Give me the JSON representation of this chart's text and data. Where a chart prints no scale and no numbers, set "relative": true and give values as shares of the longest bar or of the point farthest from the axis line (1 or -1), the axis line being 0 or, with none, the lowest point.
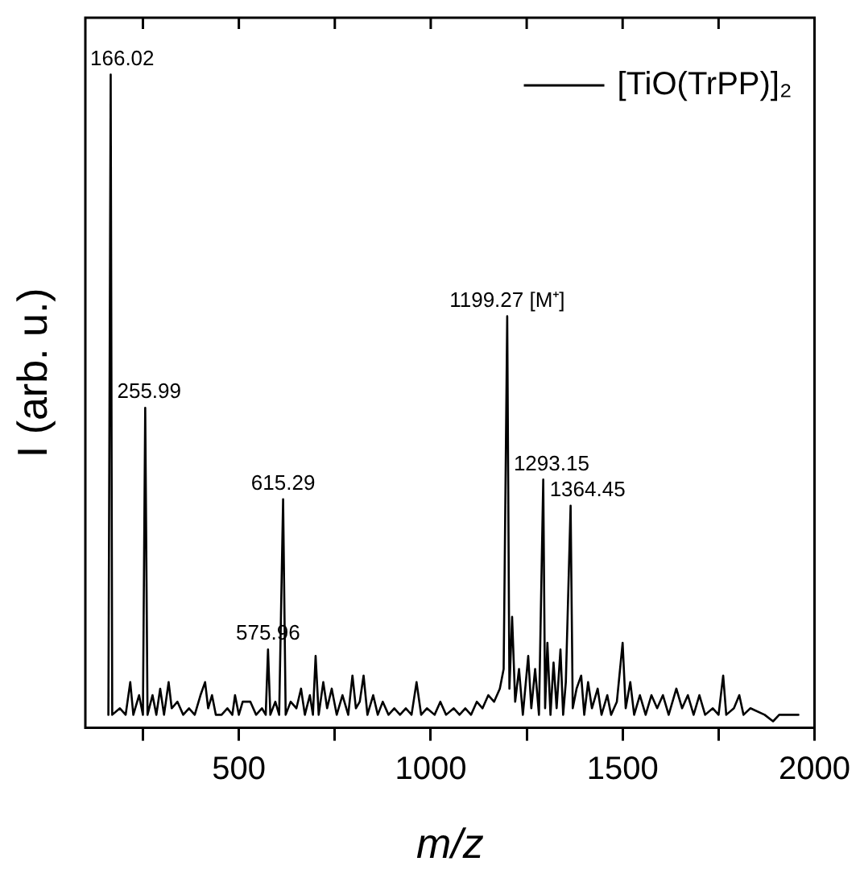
{
  "chart_data": {
    "type": "line",
    "relative": true,
    "xlabel": "m/z",
    "ylabel": "I (arb. u.)",
    "xlim": [
      100,
      2000
    ],
    "xticks": [
      {
        "value": 250,
        "label": null
      },
      500,
      {
        "value": 750,
        "label": null
      },
      1000,
      {
        "value": 1250,
        "label": null
      },
      1500,
      {
        "value": 1750,
        "label": null
      },
      2000
    ],
    "legend": "top right",
    "grid": false,
    "marker": "none",
    "line_style": "solid",
    "annotations": [
      {
        "text": "166.02",
        "x": 166.02,
        "y": 1.0
      },
      {
        "text": "255.99",
        "x": 255.99,
        "y": 0.49
      },
      {
        "text": "575.96",
        "x": 575.96,
        "y": 0.12
      },
      {
        "text": "615.29",
        "x": 615.29,
        "y": 0.35
      },
      {
        "text": "1199.27 [M⁺]",
        "x": 1199.27,
        "y": 0.63
      },
      {
        "text": "1293.15",
        "x": 1293.15,
        "y": 0.38
      },
      {
        "text": "1364.45",
        "x": 1364.45,
        "y": 0.34
      }
    ],
    "series": [
      {
        "name": "[TiO(TrPP)]₂",
        "color": "#000000",
        "x": [
          160,
          166.02,
          170,
          190,
          205,
          217,
          225,
          240,
          250,
          255.99,
          262,
          275,
          285,
          295,
          305,
          317,
          325,
          340,
          355,
          370,
          385,
          400,
          412,
          420,
          430,
          440,
          455,
          470,
          483,
          490,
          500,
          510,
          530,
          545,
          560,
          570,
          575.96,
          582,
          595,
          605,
          615.29,
          622,
          635,
          650,
          662,
          672,
          685,
          693,
          700,
          708,
          720,
          730,
          742,
          755,
          770,
          785,
          796,
          805,
          815,
          825,
          835,
          850,
          862,
          875,
          890,
          905,
          920,
          935,
          950,
          963,
          975,
          990,
          1010,
          1025,
          1040,
          1060,
          1075,
          1090,
          1105,
          1120,
          1135,
          1150,
          1165,
          1180,
          1190,
          1199.27,
          1205,
          1212,
          1220,
          1230,
          1240,
          1254,
          1262,
          1272,
          1282,
          1293.15,
          1298,
          1304,
          1312,
          1320,
          1328,
          1338,
          1345,
          1352,
          1364.45,
          1370,
          1380,
          1392,
          1400,
          1410,
          1420,
          1435,
          1445,
          1460,
          1470,
          1485,
          1500,
          1508,
          1520,
          1530,
          1545,
          1560,
          1575,
          1590,
          1605,
          1620,
          1640,
          1655,
          1670,
          1685,
          1700,
          1715,
          1735,
          1750,
          1762,
          1770,
          1790,
          1804,
          1815,
          1833,
          1870,
          1892,
          1908,
          1958
        ],
        "values": [
          0.02,
          1.0,
          0.02,
          0.03,
          0.02,
          0.07,
          0.02,
          0.05,
          0.02,
          0.49,
          0.02,
          0.05,
          0.02,
          0.06,
          0.02,
          0.07,
          0.03,
          0.04,
          0.02,
          0.03,
          0.02,
          0.05,
          0.07,
          0.03,
          0.05,
          0.02,
          0.02,
          0.03,
          0.02,
          0.05,
          0.02,
          0.04,
          0.04,
          0.02,
          0.03,
          0.02,
          0.12,
          0.02,
          0.04,
          0.02,
          0.35,
          0.02,
          0.04,
          0.03,
          0.06,
          0.02,
          0.05,
          0.02,
          0.11,
          0.02,
          0.07,
          0.03,
          0.06,
          0.02,
          0.05,
          0.02,
          0.08,
          0.03,
          0.04,
          0.08,
          0.02,
          0.05,
          0.02,
          0.04,
          0.02,
          0.03,
          0.02,
          0.03,
          0.02,
          0.07,
          0.02,
          0.03,
          0.02,
          0.04,
          0.02,
          0.03,
          0.02,
          0.03,
          0.02,
          0.04,
          0.03,
          0.05,
          0.04,
          0.06,
          0.09,
          0.63,
          0.06,
          0.17,
          0.04,
          0.09,
          0.02,
          0.11,
          0.03,
          0.09,
          0.02,
          0.38,
          0.03,
          0.13,
          0.02,
          0.1,
          0.03,
          0.12,
          0.02,
          0.07,
          0.34,
          0.03,
          0.06,
          0.08,
          0.02,
          0.07,
          0.03,
          0.06,
          0.02,
          0.05,
          0.02,
          0.04,
          0.13,
          0.03,
          0.07,
          0.02,
          0.05,
          0.02,
          0.05,
          0.03,
          0.05,
          0.02,
          0.06,
          0.03,
          0.05,
          0.02,
          0.05,
          0.02,
          0.03,
          0.02,
          0.08,
          0.02,
          0.03,
          0.05,
          0.02,
          0.03,
          0.02,
          0.01,
          0.02,
          0.02
        ]
      }
    ]
  }
}
